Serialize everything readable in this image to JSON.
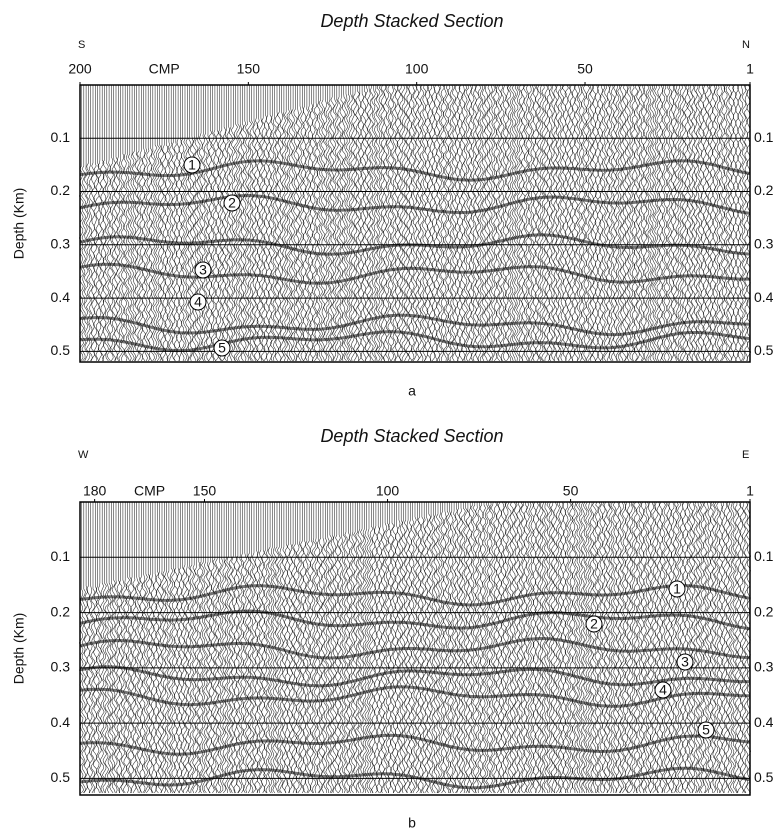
{
  "chart_data": [
    {
      "type": "seismic",
      "title": "Depth Stacked Section",
      "left_label": "S",
      "right_label": "N",
      "xlabel": "CMP",
      "ylabel": "Depth (Km)",
      "xlim": [
        200,
        1
      ],
      "xticks": [
        200,
        150,
        100,
        50,
        1
      ],
      "ylim": [
        0,
        0.52
      ],
      "yticks": [
        0.1,
        0.2,
        0.3,
        0.4,
        0.5
      ],
      "grid": true,
      "annotations": [
        "1",
        "2",
        "3",
        "4",
        "5"
      ],
      "caption": "a"
    },
    {
      "type": "seismic",
      "title": "Depth Stacked Section",
      "left_label": "W",
      "right_label": "E",
      "xlabel": "CMP",
      "ylabel": "Depth (Km)",
      "xlim": [
        184,
        1
      ],
      "xticks": [
        180,
        150,
        100,
        50,
        1
      ],
      "ylim": [
        0,
        0.53
      ],
      "yticks": [
        0.1,
        0.2,
        0.3,
        0.4,
        0.5
      ],
      "grid": true,
      "annotations": [
        "1",
        "2",
        "3",
        "4",
        "5"
      ],
      "caption": "b"
    }
  ]
}
